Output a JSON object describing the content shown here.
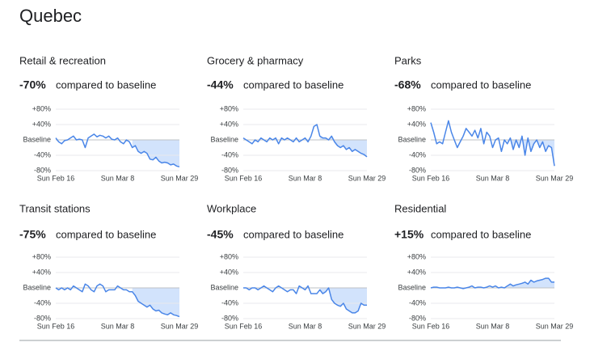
{
  "title": "Quebec",
  "chart_data": [
    {
      "type": "line",
      "title": "Retail & recreation",
      "change": {
        "value": -70,
        "label": "-70%"
      },
      "comparison": "compared to baseline",
      "color": "#4a86e8",
      "x": [
        "Sun Feb 16",
        null,
        null,
        null,
        null,
        null,
        null,
        null,
        null,
        null,
        null,
        null,
        null,
        null,
        null,
        null,
        null,
        null,
        null,
        null,
        null,
        "Sun Mar 8",
        null,
        null,
        null,
        null,
        null,
        null,
        null,
        null,
        null,
        null,
        null,
        null,
        null,
        null,
        null,
        null,
        null,
        null,
        null,
        null,
        "Sun Mar 29"
      ],
      "values": [
        5,
        -5,
        -10,
        -2,
        0,
        5,
        10,
        0,
        2,
        0,
        -20,
        5,
        10,
        15,
        8,
        12,
        10,
        5,
        10,
        2,
        0,
        5,
        -5,
        -10,
        0,
        -5,
        -20,
        -15,
        -30,
        -35,
        -30,
        -35,
        -50,
        -52,
        -45,
        -55,
        -60,
        -58,
        -60,
        -65,
        -63,
        -68,
        -70
      ],
      "ylim": [
        -80,
        80
      ],
      "yticks": [
        {
          "value": 80,
          "label": "+80%"
        },
        {
          "value": 40,
          "label": "+40%"
        },
        {
          "value": 0,
          "label": "Baseline"
        },
        {
          "value": -40,
          "label": "-40%"
        },
        {
          "value": -80,
          "label": "-80%"
        }
      ],
      "grid": true
    },
    {
      "type": "line",
      "title": "Grocery & pharmacy",
      "change": {
        "value": -44,
        "label": "-44%"
      },
      "comparison": "compared to baseline",
      "color": "#4a86e8",
      "x": [
        "Sun Feb 16",
        null,
        null,
        null,
        null,
        null,
        null,
        null,
        null,
        null,
        null,
        null,
        null,
        null,
        null,
        null,
        null,
        null,
        null,
        null,
        null,
        "Sun Mar 8",
        null,
        null,
        null,
        null,
        null,
        null,
        null,
        null,
        null,
        null,
        null,
        null,
        null,
        null,
        null,
        null,
        null,
        null,
        null,
        null,
        "Sun Mar 29"
      ],
      "values": [
        5,
        0,
        -5,
        -10,
        0,
        -5,
        5,
        0,
        -5,
        5,
        0,
        5,
        -10,
        5,
        0,
        5,
        0,
        -5,
        5,
        -5,
        0,
        5,
        -5,
        10,
        35,
        40,
        10,
        5,
        5,
        0,
        10,
        -5,
        -15,
        -20,
        -15,
        -25,
        -20,
        -30,
        -25,
        -30,
        -35,
        -38,
        -44
      ],
      "ylim": [
        -80,
        80
      ],
      "yticks": [
        {
          "value": 80,
          "label": "+80%"
        },
        {
          "value": 40,
          "label": "+40%"
        },
        {
          "value": 0,
          "label": "Baseline"
        },
        {
          "value": -40,
          "label": "-40%"
        },
        {
          "value": -80,
          "label": "-80%"
        }
      ],
      "grid": true
    },
    {
      "type": "line",
      "title": "Parks",
      "change": {
        "value": -68,
        "label": "-68%"
      },
      "comparison": "compared to baseline",
      "color": "#4a86e8",
      "x": [
        "Sun Feb 16",
        null,
        null,
        null,
        null,
        null,
        null,
        null,
        null,
        null,
        null,
        null,
        null,
        null,
        null,
        null,
        null,
        null,
        null,
        null,
        null,
        "Sun Mar 8",
        null,
        null,
        null,
        null,
        null,
        null,
        null,
        null,
        null,
        null,
        null,
        null,
        null,
        null,
        null,
        null,
        null,
        null,
        null,
        null,
        "Sun Mar 29"
      ],
      "values": [
        45,
        20,
        -10,
        -5,
        -10,
        20,
        50,
        20,
        0,
        -20,
        -5,
        10,
        30,
        20,
        10,
        25,
        5,
        30,
        -10,
        20,
        10,
        -20,
        0,
        5,
        -30,
        0,
        -10,
        5,
        -25,
        0,
        -20,
        10,
        -40,
        5,
        -30,
        -10,
        0,
        -20,
        -5,
        -30,
        -15,
        -20,
        -68
      ],
      "ylim": [
        -80,
        80
      ],
      "yticks": [
        {
          "value": 80,
          "label": "+80%"
        },
        {
          "value": 40,
          "label": "+40%"
        },
        {
          "value": 0,
          "label": "Baseline"
        },
        {
          "value": -40,
          "label": "-40%"
        },
        {
          "value": -80,
          "label": "-80%"
        }
      ],
      "grid": true
    },
    {
      "type": "line",
      "title": "Transit stations",
      "change": {
        "value": -75,
        "label": "-75%"
      },
      "comparison": "compared to baseline",
      "color": "#4a86e8",
      "x": [
        "Sun Feb 16",
        null,
        null,
        null,
        null,
        null,
        null,
        null,
        null,
        null,
        null,
        null,
        null,
        null,
        null,
        null,
        null,
        null,
        null,
        null,
        null,
        "Sun Mar 8",
        null,
        null,
        null,
        null,
        null,
        null,
        null,
        null,
        null,
        null,
        null,
        null,
        null,
        null,
        null,
        null,
        null,
        null,
        null,
        null,
        "Sun Mar 29"
      ],
      "values": [
        0,
        -5,
        0,
        -5,
        0,
        -5,
        5,
        0,
        -5,
        -10,
        10,
        5,
        -5,
        -10,
        5,
        10,
        5,
        -10,
        -5,
        -5,
        -5,
        5,
        0,
        -5,
        -5,
        -10,
        -10,
        -20,
        -35,
        -40,
        -45,
        -50,
        -45,
        -55,
        -60,
        -58,
        -65,
        -68,
        -70,
        -65,
        -70,
        -72,
        -75
      ],
      "ylim": [
        -80,
        80
      ],
      "yticks": [
        {
          "value": 80,
          "label": "+80%"
        },
        {
          "value": 40,
          "label": "+40%"
        },
        {
          "value": 0,
          "label": "Baseline"
        },
        {
          "value": -40,
          "label": "-40%"
        },
        {
          "value": -80,
          "label": "-80%"
        }
      ],
      "grid": true
    },
    {
      "type": "line",
      "title": "Workplace",
      "change": {
        "value": -45,
        "label": "-45%"
      },
      "comparison": "compared to baseline",
      "color": "#4a86e8",
      "x": [
        "Sun Feb 16",
        null,
        null,
        null,
        null,
        null,
        null,
        null,
        null,
        null,
        null,
        null,
        null,
        null,
        null,
        null,
        null,
        null,
        null,
        null,
        null,
        "Sun Mar 8",
        null,
        null,
        null,
        null,
        null,
        null,
        null,
        null,
        null,
        null,
        null,
        null,
        null,
        null,
        null,
        null,
        null,
        null,
        null,
        null,
        "Sun Mar 29"
      ],
      "values": [
        0,
        0,
        -5,
        0,
        0,
        -5,
        0,
        5,
        0,
        -5,
        -10,
        0,
        5,
        0,
        -5,
        -10,
        -5,
        -5,
        -15,
        5,
        0,
        -5,
        5,
        -15,
        -15,
        -15,
        -5,
        -15,
        -10,
        0,
        -30,
        -40,
        -45,
        -48,
        -40,
        -55,
        -60,
        -65,
        -65,
        -60,
        -40,
        -45,
        -45
      ],
      "ylim": [
        -80,
        80
      ],
      "yticks": [
        {
          "value": 80,
          "label": "+80%"
        },
        {
          "value": 40,
          "label": "+40%"
        },
        {
          "value": 0,
          "label": "Baseline"
        },
        {
          "value": -40,
          "label": "-40%"
        },
        {
          "value": -80,
          "label": "-80%"
        }
      ],
      "grid": true
    },
    {
      "type": "line",
      "title": "Residential",
      "change": {
        "value": 15,
        "label": "+15%"
      },
      "comparison": "compared to baseline",
      "color": "#4a86e8",
      "x": [
        "Sun Feb 16",
        null,
        null,
        null,
        null,
        null,
        null,
        null,
        null,
        null,
        null,
        null,
        null,
        null,
        null,
        null,
        null,
        null,
        null,
        null,
        null,
        "Sun Mar 8",
        null,
        null,
        null,
        null,
        null,
        null,
        null,
        null,
        null,
        null,
        null,
        null,
        null,
        null,
        null,
        null,
        null,
        null,
        null,
        null,
        "Sun Mar 29"
      ],
      "values": [
        0,
        2,
        2,
        0,
        0,
        0,
        2,
        0,
        0,
        2,
        0,
        -2,
        0,
        2,
        5,
        0,
        2,
        2,
        0,
        2,
        5,
        2,
        5,
        0,
        2,
        0,
        5,
        10,
        5,
        8,
        10,
        12,
        15,
        10,
        20,
        15,
        18,
        20,
        22,
        25,
        25,
        15,
        15
      ],
      "ylim": [
        -80,
        80
      ],
      "yticks": [
        {
          "value": 80,
          "label": "+80%"
        },
        {
          "value": 40,
          "label": "+40%"
        },
        {
          "value": 0,
          "label": "Baseline"
        },
        {
          "value": -40,
          "label": "-40%"
        },
        {
          "value": -80,
          "label": "-80%"
        }
      ],
      "grid": true
    }
  ]
}
